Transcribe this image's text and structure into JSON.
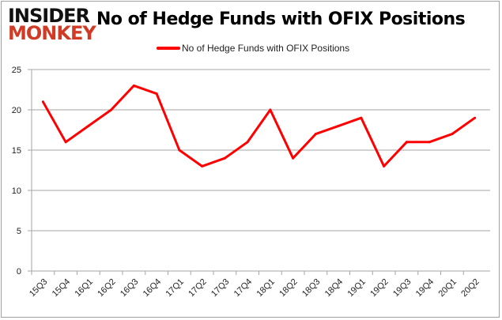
{
  "logo": {
    "line1": "INSIDER",
    "line2": "MONKEY"
  },
  "chart_data": {
    "type": "line",
    "title": "No of Hedge Funds with OFIX Positions",
    "categories": [
      "15Q3",
      "15Q4",
      "16Q1",
      "16Q2",
      "16Q3",
      "16Q4",
      "17Q1",
      "17Q2",
      "17Q3",
      "17Q4",
      "18Q1",
      "18Q2",
      "18Q3",
      "18Q4",
      "19Q1",
      "19Q2",
      "19Q3",
      "19Q4",
      "20Q1",
      "20Q2"
    ],
    "series": [
      {
        "name": "No of Hedge Funds with OFIX Positions",
        "color": "#ff0000",
        "values": [
          21,
          16,
          18,
          20,
          23,
          22,
          15,
          13,
          14,
          16,
          20,
          14,
          17,
          18,
          19,
          13,
          16,
          16,
          17,
          19
        ]
      }
    ],
    "ylim": [
      0,
      25
    ],
    "yticks": [
      0,
      5,
      10,
      15,
      20,
      25
    ],
    "grid": true,
    "legend": "top-center"
  }
}
